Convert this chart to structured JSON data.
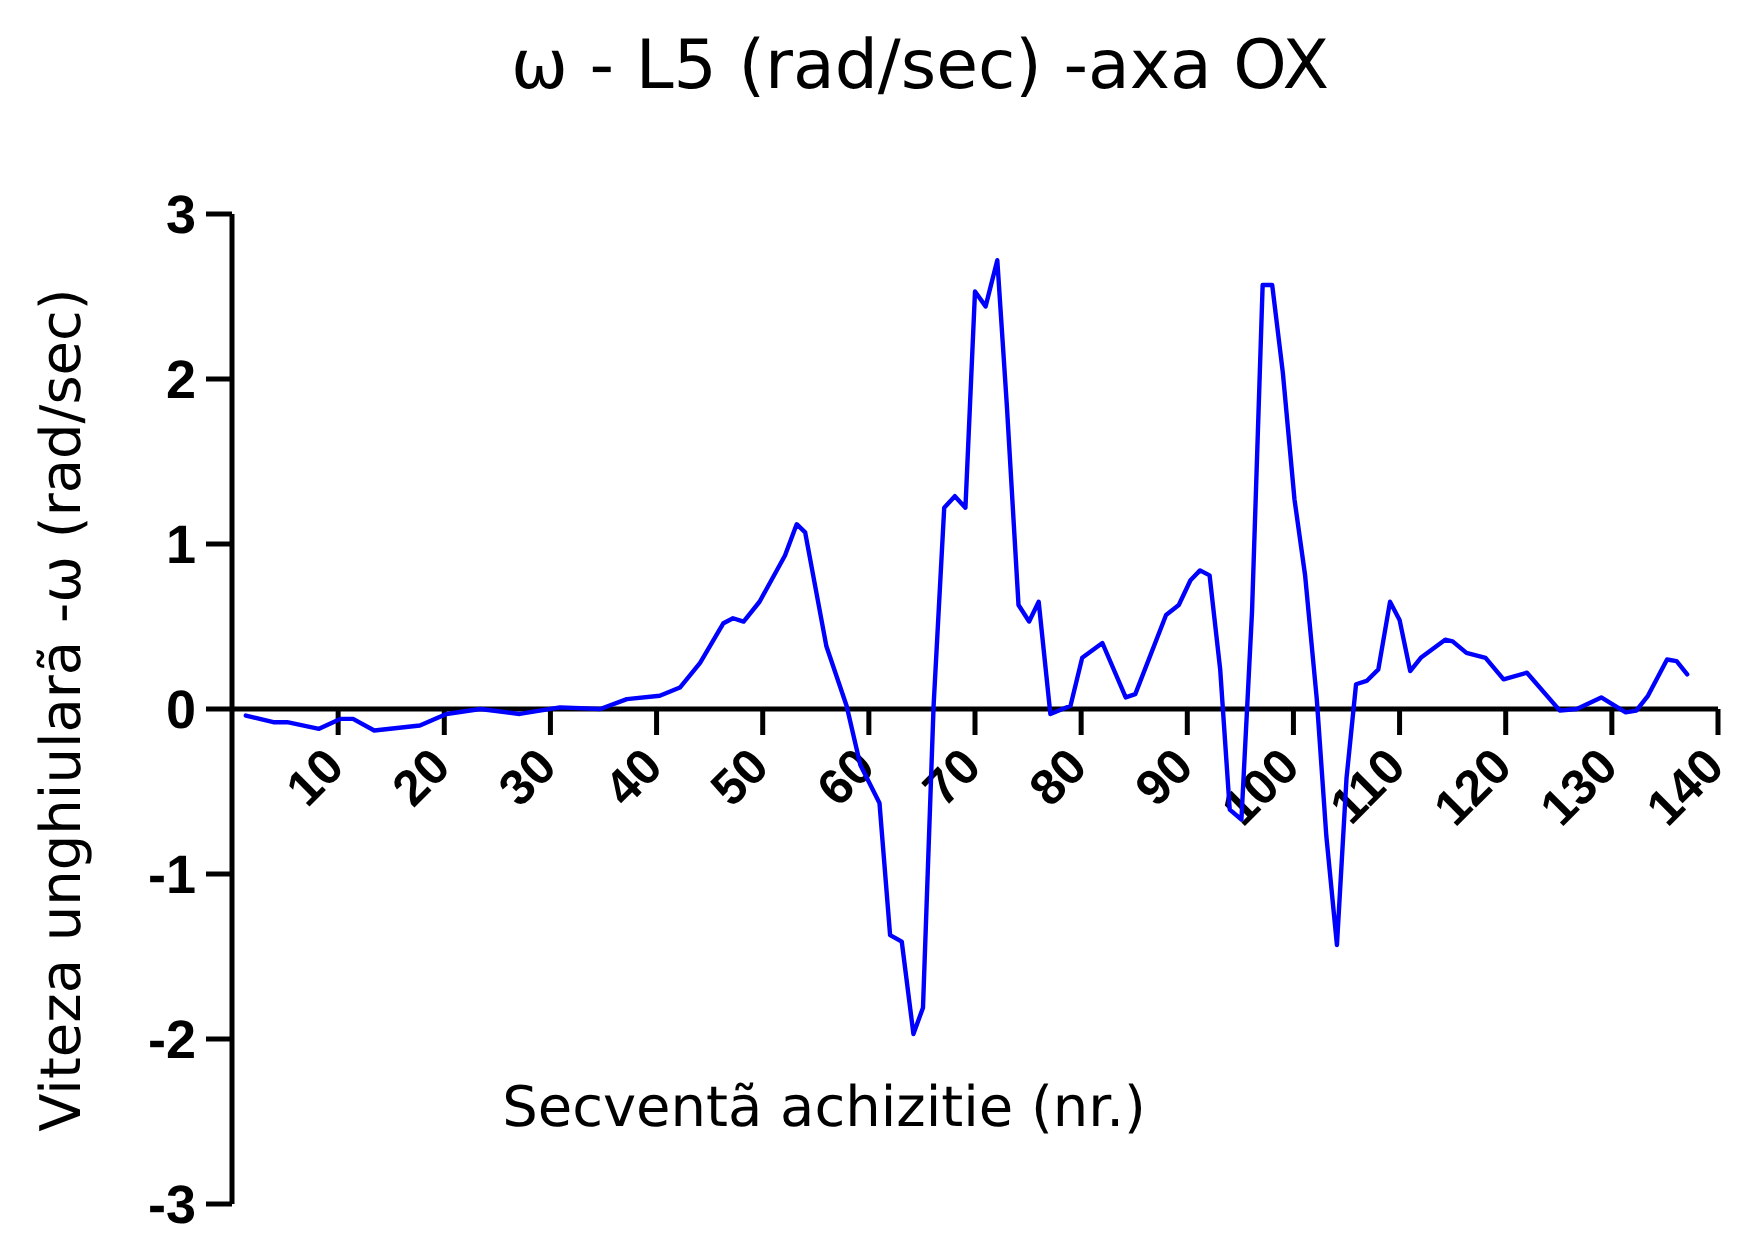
{
  "chart_data": {
    "type": "line",
    "title": "ω  - L5 (rad/sec) -axa OX",
    "xlabel": "Secventã achizitie (nr.)",
    "ylabel": "Viteza unghiularã -ω (rad/sec)",
    "xlim": [
      0,
      140
    ],
    "xticks": [
      10,
      20,
      30,
      40,
      50,
      60,
      70,
      80,
      90,
      100,
      110,
      120,
      130,
      140
    ],
    "ylim": [
      -3,
      3
    ],
    "yticks": [
      -3,
      -2,
      -1,
      0,
      1,
      2,
      3
    ],
    "marker": "none",
    "line_style": "solid",
    "series": [
      {
        "color": "#0000ff",
        "x": [
          1.3,
          3.9,
          5.2,
          8.2,
          10.2,
          11.4,
          13.4,
          17.7,
          20.2,
          23.4,
          27.1,
          30.9,
          34.7,
          37.2,
          40.3,
          42.2,
          44.1,
          46.3,
          47.2,
          48.2,
          49.7,
          52.1,
          53.2,
          54,
          56,
          57.9,
          59.2,
          61,
          62,
          63.1,
          64.2,
          65.1,
          66.1,
          67.1,
          68.1,
          69.1,
          70,
          71,
          72.1,
          73,
          74.1,
          75.1,
          76,
          77.1,
          79,
          80.1,
          82,
          84.2,
          85.1,
          88,
          89.2,
          90.3,
          91.2,
          92.1,
          93.1,
          94,
          95.1,
          96.1,
          97.1,
          98,
          99,
          100.1,
          101.1,
          102.2,
          103.1,
          104.1,
          105,
          105.9,
          106.9,
          108,
          109.1,
          110,
          111,
          112,
          114.3,
          115,
          116.3,
          118.1,
          119.8,
          122,
          125.1,
          126.7,
          129,
          131.3,
          132.3,
          133.4,
          135.2,
          136.1,
          137.1
        ],
        "values": [
          -0.04,
          -0.08,
          -0.08,
          -0.12,
          -0.06,
          -0.06,
          -0.13,
          -0.1,
          -0.03,
          0,
          -0.03,
          0.01,
          0,
          0.06,
          0.08,
          0.13,
          0.28,
          0.52,
          0.55,
          0.53,
          0.65,
          0.93,
          1.12,
          1.07,
          0.38,
          0.02,
          -0.34,
          -0.57,
          -1.37,
          -1.41,
          -1.97,
          -1.81,
          0.02,
          1.22,
          1.29,
          1.22,
          2.53,
          2.44,
          2.72,
          1.84,
          0.63,
          0.53,
          0.65,
          -0.03,
          0.02,
          0.31,
          0.4,
          0.07,
          0.09,
          0.57,
          0.63,
          0.78,
          0.84,
          0.81,
          0.24,
          -0.61,
          -0.67,
          0.59,
          2.57,
          2.57,
          2.04,
          1.27,
          0.81,
          0.06,
          -0.77,
          -1.43,
          -0.42,
          0.15,
          0.17,
          0.24,
          0.65,
          0.54,
          0.23,
          0.31,
          0.42,
          0.41,
          0.34,
          0.31,
          0.18,
          0.22,
          -0.01,
          0,
          0.07,
          -0.02,
          -0.01,
          0.08,
          0.3,
          0.29,
          0.21
        ]
      }
    ]
  }
}
